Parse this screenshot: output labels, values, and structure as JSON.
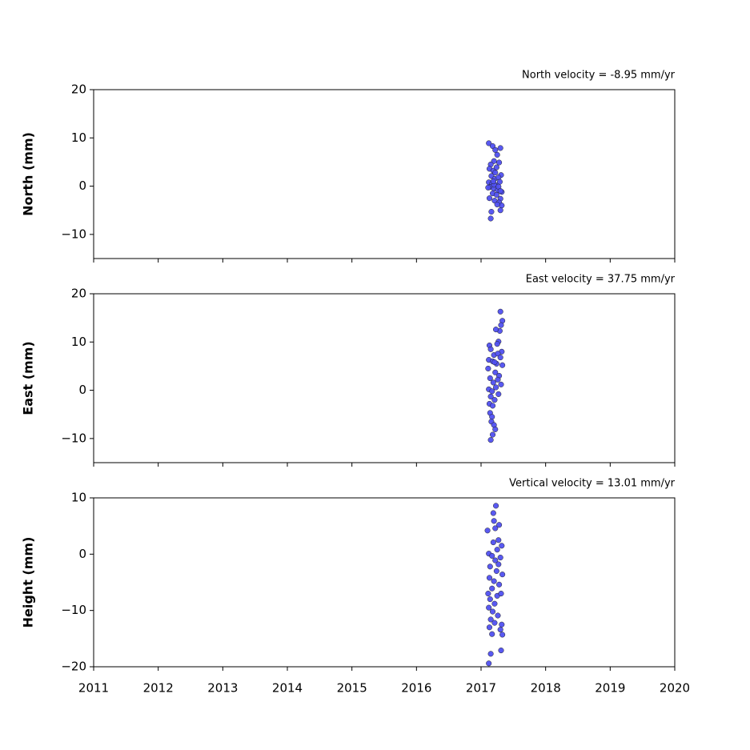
{
  "chart_data": [
    {
      "type": "scatter",
      "title": "North velocity = -8.95 mm/yr",
      "y_label": "North (mm)",
      "xlim": [
        2011,
        2020
      ],
      "xticks": [
        2011,
        2012,
        2013,
        2014,
        2015,
        2016,
        2017,
        2018,
        2019,
        2020
      ],
      "ylim": [
        -15,
        20
      ],
      "yticks": [
        {
          "value": -10,
          "label": "−10"
        },
        0,
        10,
        20
      ],
      "series": [
        {
          "color": "#5050f0",
          "x": [
            2017.12,
            2017.18,
            2017.22,
            2017.3,
            2017.25,
            2017.2,
            2017.15,
            2017.28,
            2017.13,
            2017.19,
            2017.24,
            2017.31,
            2017.16,
            2017.21,
            2017.27,
            2017.12,
            2017.17,
            2017.23,
            2017.29,
            2017.14,
            2017.2,
            2017.26,
            2017.32,
            2017.11,
            2017.18,
            2017.24,
            2017.3,
            2017.13,
            2017.21,
            2017.28,
            2017.32,
            2017.25,
            2017.3,
            2017.16,
            2017.15,
            2017.2,
            2017.22,
            2017.27,
            2017.19,
            2017.3
          ],
          "values": [
            8.9,
            8.3,
            7.5,
            7.9,
            6.5,
            5.2,
            4.5,
            4.9,
            3.6,
            3.2,
            3.9,
            2.3,
            2.1,
            1.5,
            1.8,
            0.8,
            0.5,
            0.2,
            0.9,
            -0.2,
            -0.5,
            -0.8,
            -1.2,
            -0.3,
            -1.5,
            -1.8,
            -2.6,
            -2.5,
            -3.0,
            -3.4,
            -4.0,
            -3.8,
            -5.0,
            -5.3,
            -6.7,
            0.3,
            2.8,
            -0.1,
            1.0,
            -1.0
          ]
        }
      ]
    },
    {
      "type": "scatter",
      "title": "East velocity = 37.75 mm/yr",
      "y_label": "East (mm)",
      "xlim": [
        2011,
        2020
      ],
      "xticks": [
        2011,
        2012,
        2013,
        2014,
        2015,
        2016,
        2017,
        2018,
        2019,
        2020
      ],
      "ylim": [
        -15,
        20
      ],
      "yticks": [
        {
          "value": -10,
          "label": "−10"
        },
        0,
        10,
        20
      ],
      "series": [
        {
          "color": "#5050f0",
          "x": [
            2017.3,
            2017.33,
            2017.31,
            2017.29,
            2017.23,
            2017.27,
            2017.25,
            2017.13,
            2017.15,
            2017.32,
            2017.2,
            2017.26,
            2017.12,
            2017.18,
            2017.24,
            2017.33,
            2017.11,
            2017.22,
            2017.28,
            2017.14,
            2017.19,
            2017.31,
            2017.12,
            2017.17,
            2017.23,
            2017.27,
            2017.15,
            2017.21,
            2017.13,
            2017.18,
            2017.14,
            2017.17,
            2017.16,
            2017.2,
            2017.22,
            2017.18,
            2017.15,
            2017.3,
            2017.21,
            2017.26
          ],
          "values": [
            16.3,
            14.4,
            13.5,
            12.3,
            12.6,
            10.1,
            9.6,
            9.3,
            8.5,
            8.0,
            7.3,
            7.6,
            6.3,
            6.0,
            5.5,
            5.2,
            4.5,
            3.7,
            3.0,
            2.5,
            1.6,
            1.2,
            0.2,
            -0.2,
            0.6,
            -0.8,
            -1.3,
            -2.0,
            -2.8,
            -3.2,
            -4.7,
            -5.5,
            -6.5,
            -7.2,
            -8.1,
            -9.2,
            -10.3,
            6.8,
            5.8,
            2.2
          ]
        }
      ]
    },
    {
      "type": "scatter",
      "title": "Vertical velocity = 13.01 mm/yr",
      "y_label": "Height (mm)",
      "xlim": [
        2011,
        2020
      ],
      "xticks": [
        2011,
        2012,
        2013,
        2014,
        2015,
        2016,
        2017,
        2018,
        2019,
        2020
      ],
      "ylim": [
        -20,
        10
      ],
      "yticks": [
        {
          "value": -20,
          "label": "−20"
        },
        {
          "value": -10,
          "label": "−10"
        },
        0,
        10
      ],
      "series": [
        {
          "color": "#5050f0",
          "x": [
            2017.23,
            2017.19,
            2017.2,
            2017.28,
            2017.1,
            2017.22,
            2017.27,
            2017.19,
            2017.32,
            2017.25,
            2017.12,
            2017.17,
            2017.3,
            2017.22,
            2017.27,
            2017.14,
            2017.24,
            2017.33,
            2017.13,
            2017.2,
            2017.28,
            2017.17,
            2017.11,
            2017.25,
            2017.31,
            2017.14,
            2017.21,
            2017.12,
            2017.18,
            2017.26,
            2017.15,
            2017.21,
            2017.32,
            2017.13,
            2017.3,
            2017.17,
            2017.33,
            2017.31,
            2017.15,
            2017.12
          ],
          "values": [
            8.6,
            7.3,
            5.9,
            5.2,
            4.2,
            4.6,
            2.5,
            2.1,
            1.5,
            0.8,
            0.1,
            -0.3,
            -0.6,
            -1.1,
            -1.8,
            -2.2,
            -3.0,
            -3.6,
            -4.2,
            -4.8,
            -5.4,
            -6.1,
            -7.0,
            -7.4,
            -7.0,
            -8.0,
            -8.8,
            -9.5,
            -10.2,
            -10.9,
            -11.6,
            -12.2,
            -12.5,
            -13.0,
            -13.4,
            -14.2,
            -14.3,
            -17.1,
            -17.7,
            -19.4
          ]
        }
      ]
    }
  ]
}
